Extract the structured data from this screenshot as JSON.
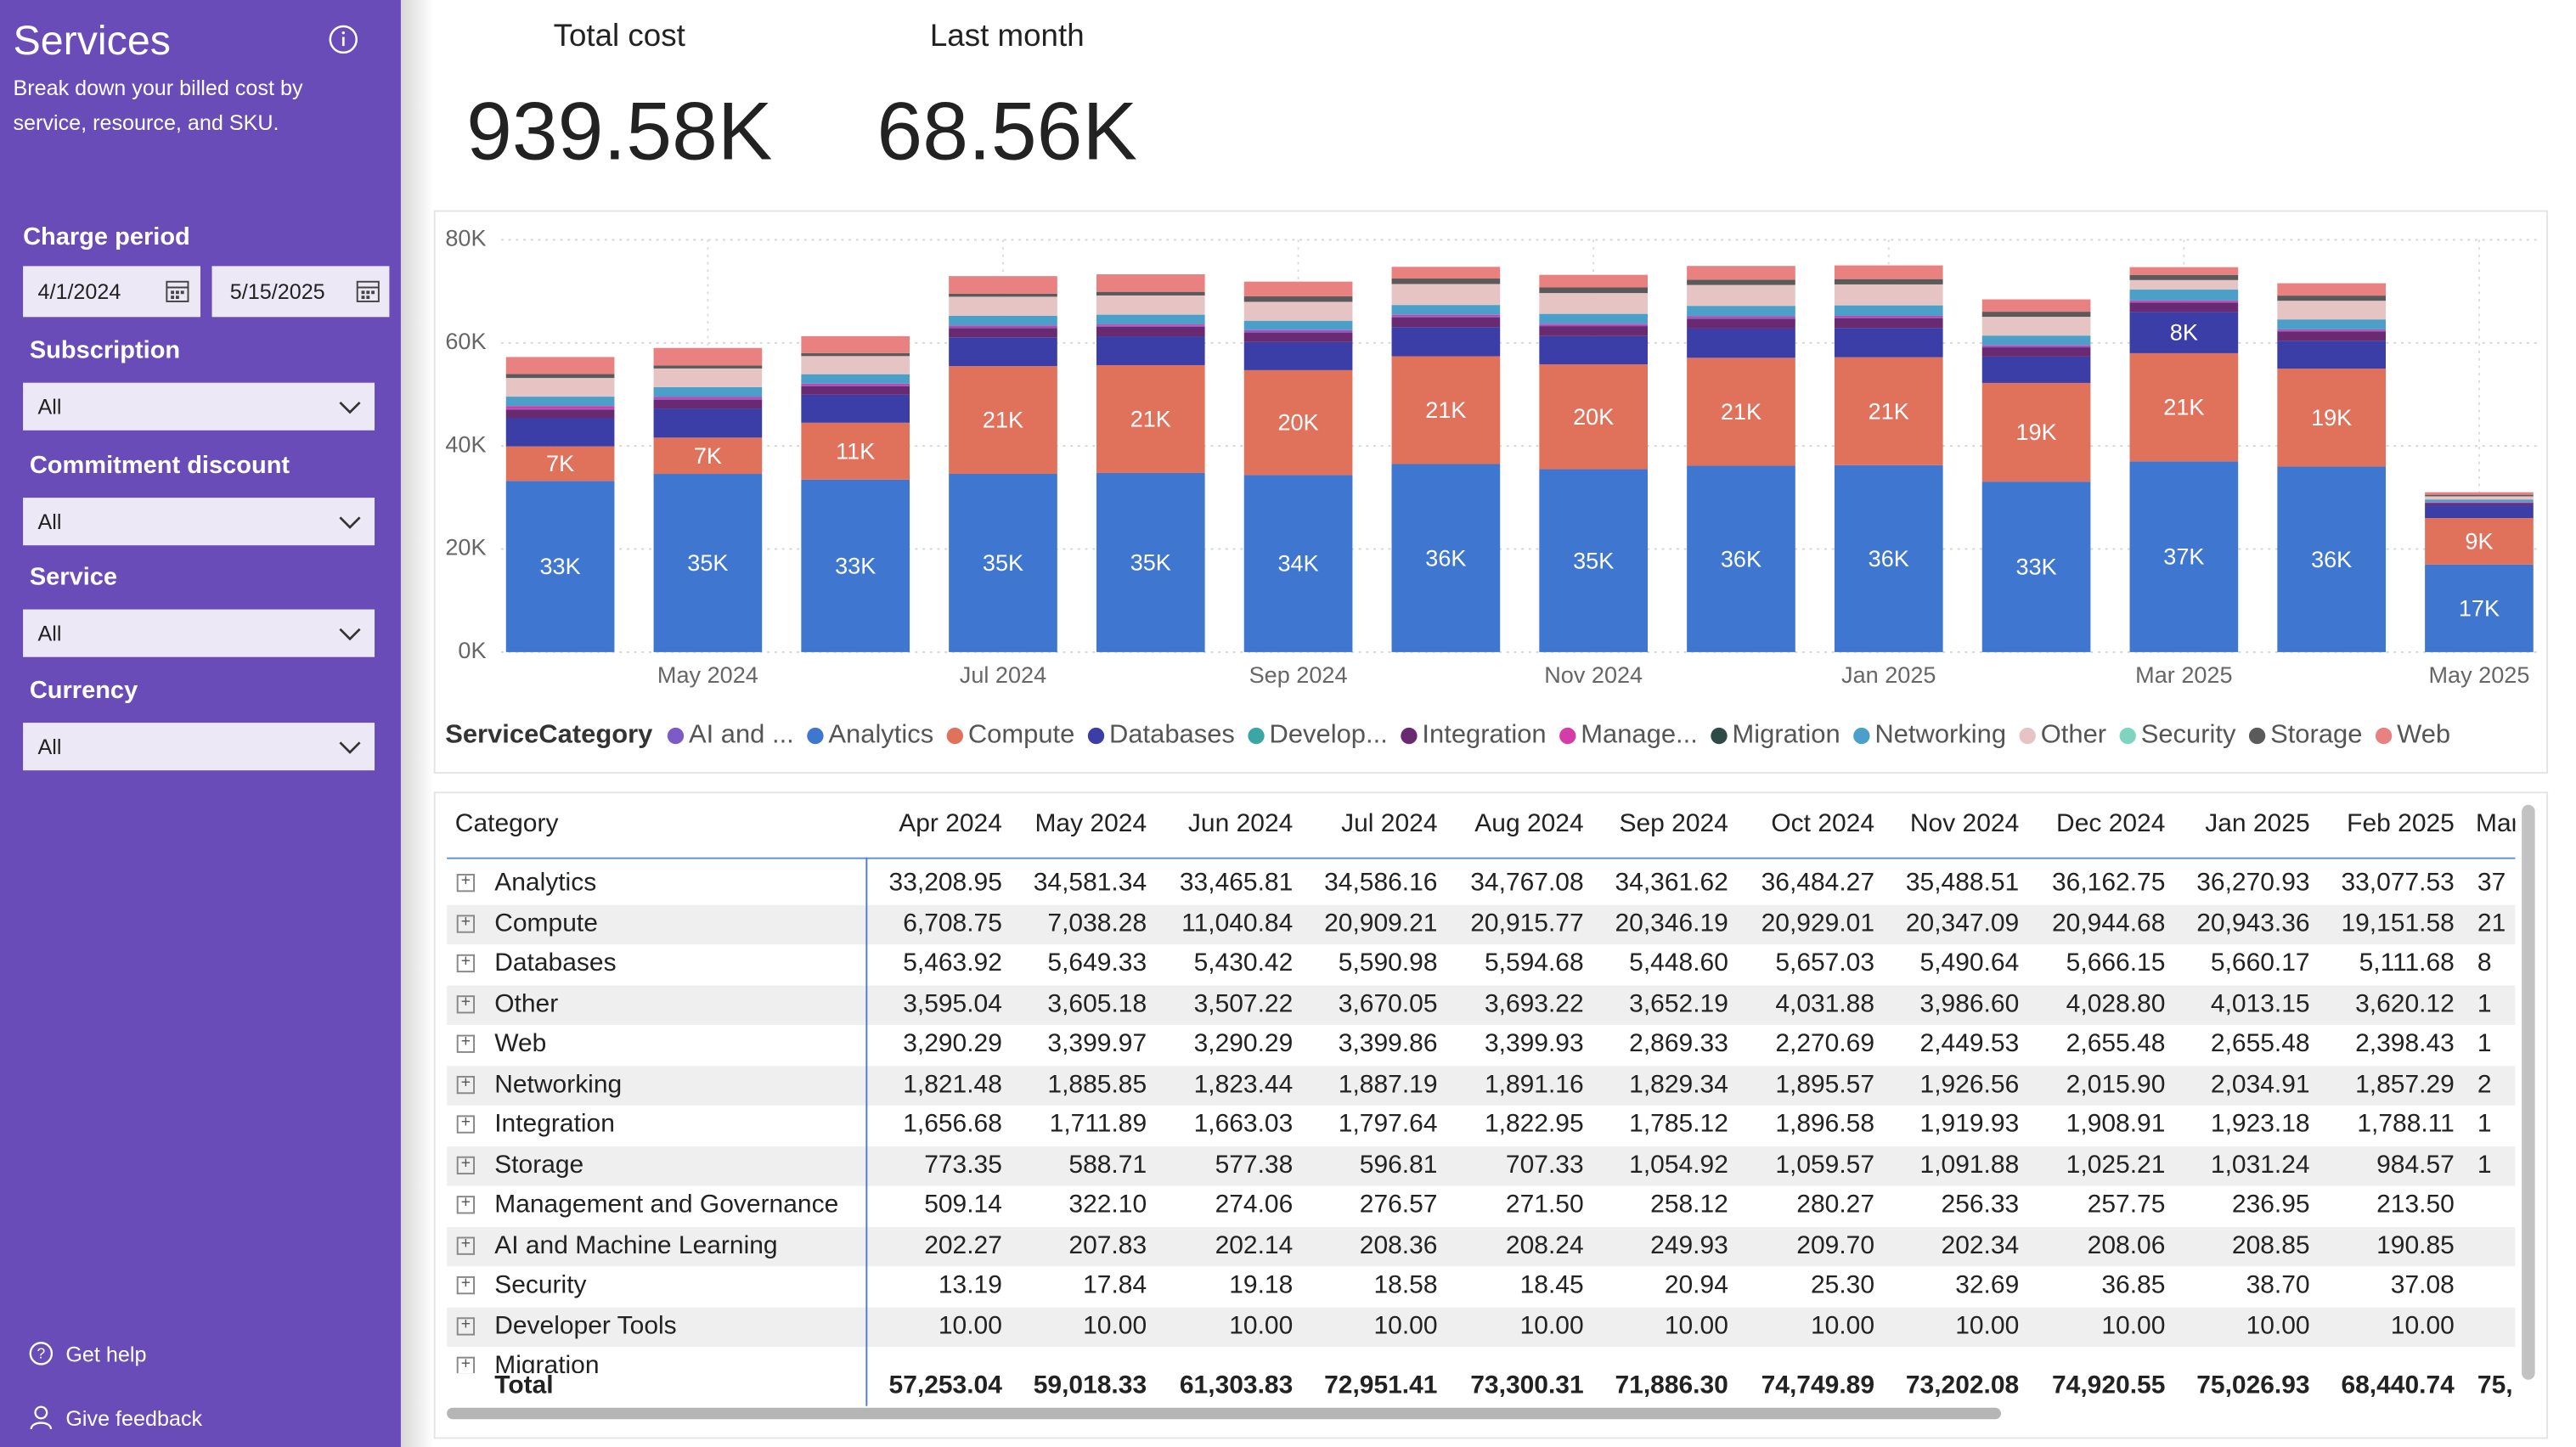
{
  "sidebar": {
    "title": "Services",
    "description": "Break down your billed cost by service, resource, and SKU.",
    "filters": [
      {
        "label": "Charge period",
        "start": "4/1/2024",
        "end": "5/15/2025"
      },
      {
        "label": "Subscription",
        "value": "All"
      },
      {
        "label": "Commitment discount",
        "value": "All"
      },
      {
        "label": "Service",
        "value": "All"
      },
      {
        "label": "Currency",
        "value": "All"
      }
    ],
    "links": [
      "Get help",
      "Give feedback"
    ]
  },
  "kpis": [
    {
      "label": "Total cost",
      "value": "939.58K"
    },
    {
      "label": "Last month",
      "value": "68.56K"
    }
  ],
  "chart_data": {
    "type": "bar",
    "stacked": true,
    "legend_title": "ServiceCategory",
    "legend": "bottom",
    "grid": true,
    "categories": [
      null,
      "May 2024",
      null,
      "Jul 2024",
      null,
      "Sep 2024",
      null,
      "Nov 2024",
      null,
      "Jan 2025",
      null,
      "Mar 2025",
      null,
      "May 2025"
    ],
    "ylim": [
      0,
      80000
    ],
    "yticks": [
      {
        "value": 0,
        "label": "0K"
      },
      {
        "value": 20000,
        "label": "20K"
      },
      {
        "value": 40000,
        "label": "40K"
      },
      {
        "value": 60000,
        "label": "60K"
      },
      {
        "value": 80000,
        "label": "80K"
      }
    ],
    "series": [
      {
        "name": "AI and ...",
        "color": "#7b5bc6",
        "values": [
          202.27,
          207.83,
          202.14,
          208.36,
          208.24,
          249.93,
          209.7,
          202.34,
          208.06,
          208.85,
          190.85,
          210,
          200,
          100
        ]
      },
      {
        "name": "Analytics",
        "color": "#3e76d0",
        "values": [
          33208.95,
          34581.34,
          33465.81,
          34586.16,
          34767.08,
          34361.62,
          36484.27,
          35488.51,
          36162.75,
          36270.93,
          33077.53,
          37000,
          36000,
          17000
        ],
        "value_labels": [
          "33K",
          "35K",
          "33K",
          "35K",
          "35K",
          "34K",
          "36K",
          "35K",
          "36K",
          "36K",
          "33K",
          "37K",
          "36K",
          "17K"
        ]
      },
      {
        "name": "Compute",
        "color": "#e0715b",
        "values": [
          6708.75,
          7038.28,
          11040.84,
          20909.21,
          20915.77,
          20346.19,
          20929.01,
          20347.09,
          20944.68,
          20943.36,
          19151.58,
          21000,
          19000,
          9000
        ],
        "value_labels": [
          "7K",
          "7K",
          "11K",
          "21K",
          "21K",
          "20K",
          "21K",
          "20K",
          "21K",
          "21K",
          "19K",
          "21K",
          "19K",
          "9K"
        ]
      },
      {
        "name": "Databases",
        "color": "#3a3ea6",
        "values": [
          5463.92,
          5649.33,
          5430.42,
          5590.98,
          5594.68,
          5448.6,
          5657.03,
          5490.64,
          5666.15,
          5660.17,
          5111.68,
          8000,
          5400,
          2500
        ],
        "value_labels": [
          null,
          null,
          null,
          null,
          null,
          null,
          null,
          null,
          null,
          null,
          null,
          "8K",
          null,
          null
        ]
      },
      {
        "name": "Develop...",
        "color": "#3aa6a6",
        "values": [
          10,
          10,
          10,
          10,
          10,
          10,
          10,
          10,
          10,
          10,
          10,
          10,
          10,
          5
        ]
      },
      {
        "name": "Integration",
        "color": "#6a2a72",
        "values": [
          1656.68,
          1711.89,
          1663.03,
          1797.64,
          1822.95,
          1785.12,
          1896.58,
          1919.93,
          1908.91,
          1923.18,
          1788.11,
          1800,
          1800,
          400
        ]
      },
      {
        "name": "Manage...",
        "color": "#d63ca8",
        "values": [
          509.14,
          322.1,
          274.06,
          276.57,
          271.5,
          258.12,
          280.27,
          256.33,
          257.75,
          236.95,
          213.5,
          230,
          220,
          100
        ]
      },
      {
        "name": "Migration",
        "color": "#2f4a47",
        "values": [
          5,
          5,
          5,
          5,
          5,
          5,
          5,
          5,
          5,
          5,
          5,
          5,
          5,
          5
        ]
      },
      {
        "name": "Networking",
        "color": "#4b9fc9",
        "values": [
          1821.48,
          1885.85,
          1823.44,
          1887.19,
          1891.16,
          1829.34,
          1895.57,
          1926.56,
          2015.9,
          2034.91,
          1857.29,
          2100,
          1900,
          500
        ]
      },
      {
        "name": "Other",
        "color": "#e6c4c4",
        "values": [
          3595.04,
          3605.18,
          3507.22,
          3670.05,
          3693.22,
          3652.19,
          4031.88,
          3986.6,
          4028.8,
          4013.15,
          3620.12,
          1800,
          3600,
          600
        ]
      },
      {
        "name": "Security",
        "color": "#7fd4c0",
        "values": [
          13.19,
          17.84,
          19.18,
          18.58,
          18.45,
          20.94,
          25.3,
          32.69,
          36.85,
          38.7,
          37.08,
          40,
          40,
          20
        ]
      },
      {
        "name": "Storage",
        "color": "#5a5a5a",
        "values": [
          773.35,
          588.71,
          577.38,
          596.81,
          707.33,
          1054.92,
          1059.57,
          1091.88,
          1025.21,
          1031.24,
          984.57,
          1000,
          1000,
          300
        ]
      },
      {
        "name": "Web",
        "color": "#e8817f",
        "values": [
          3290.29,
          3399.97,
          3290.29,
          3399.86,
          3399.93,
          2869.33,
          2270.69,
          2449.53,
          2655.48,
          2655.48,
          2398.43,
          1500,
          2400,
          500
        ]
      }
    ]
  },
  "table": {
    "headers": [
      "Category",
      "Apr 2024",
      "May 2024",
      "Jun 2024",
      "Jul 2024",
      "Aug 2024",
      "Sep 2024",
      "Oct 2024",
      "Nov 2024",
      "Dec 2024",
      "Jan 2025",
      "Feb 2025",
      "Mar"
    ],
    "rows": [
      [
        "Analytics",
        "33,208.95",
        "34,581.34",
        "33,465.81",
        "34,586.16",
        "34,767.08",
        "34,361.62",
        "36,484.27",
        "35,488.51",
        "36,162.75",
        "36,270.93",
        "33,077.53",
        "37"
      ],
      [
        "Compute",
        "6,708.75",
        "7,038.28",
        "11,040.84",
        "20,909.21",
        "20,915.77",
        "20,346.19",
        "20,929.01",
        "20,347.09",
        "20,944.68",
        "20,943.36",
        "19,151.58",
        "21"
      ],
      [
        "Databases",
        "5,463.92",
        "5,649.33",
        "5,430.42",
        "5,590.98",
        "5,594.68",
        "5,448.60",
        "5,657.03",
        "5,490.64",
        "5,666.15",
        "5,660.17",
        "5,111.68",
        "8"
      ],
      [
        "Other",
        "3,595.04",
        "3,605.18",
        "3,507.22",
        "3,670.05",
        "3,693.22",
        "3,652.19",
        "4,031.88",
        "3,986.60",
        "4,028.80",
        "4,013.15",
        "3,620.12",
        "1"
      ],
      [
        "Web",
        "3,290.29",
        "3,399.97",
        "3,290.29",
        "3,399.86",
        "3,399.93",
        "2,869.33",
        "2,270.69",
        "2,449.53",
        "2,655.48",
        "2,655.48",
        "2,398.43",
        "1"
      ],
      [
        "Networking",
        "1,821.48",
        "1,885.85",
        "1,823.44",
        "1,887.19",
        "1,891.16",
        "1,829.34",
        "1,895.57",
        "1,926.56",
        "2,015.90",
        "2,034.91",
        "1,857.29",
        "2"
      ],
      [
        "Integration",
        "1,656.68",
        "1,711.89",
        "1,663.03",
        "1,797.64",
        "1,822.95",
        "1,785.12",
        "1,896.58",
        "1,919.93",
        "1,908.91",
        "1,923.18",
        "1,788.11",
        "1"
      ],
      [
        "Storage",
        "773.35",
        "588.71",
        "577.38",
        "596.81",
        "707.33",
        "1,054.92",
        "1,059.57",
        "1,091.88",
        "1,025.21",
        "1,031.24",
        "984.57",
        "1"
      ],
      [
        "Management and Governance",
        "509.14",
        "322.10",
        "274.06",
        "276.57",
        "271.50",
        "258.12",
        "280.27",
        "256.33",
        "257.75",
        "236.95",
        "213.50",
        null
      ],
      [
        "AI and Machine Learning",
        "202.27",
        "207.83",
        "202.14",
        "208.36",
        "208.24",
        "249.93",
        "209.70",
        "202.34",
        "208.06",
        "208.85",
        "190.85",
        null
      ],
      [
        "Security",
        "13.19",
        "17.84",
        "19.18",
        "18.58",
        "18.45",
        "20.94",
        "25.30",
        "32.69",
        "36.85",
        "38.70",
        "37.08",
        null
      ],
      [
        "Developer Tools",
        "10.00",
        "10.00",
        "10.00",
        "10.00",
        "10.00",
        "10.00",
        "10.00",
        "10.00",
        "10.00",
        "10.00",
        "10.00",
        null
      ],
      [
        "Migration",
        null,
        null,
        null,
        null,
        null,
        null,
        null,
        null,
        null,
        null,
        null,
        null
      ]
    ],
    "total": [
      "Total",
      "57,253.04",
      "59,018.33",
      "61,303.83",
      "72,951.41",
      "73,300.31",
      "71,886.30",
      "74,749.89",
      "73,202.08",
      "74,920.55",
      "75,026.93",
      "68,440.74",
      "75,"
    ]
  }
}
